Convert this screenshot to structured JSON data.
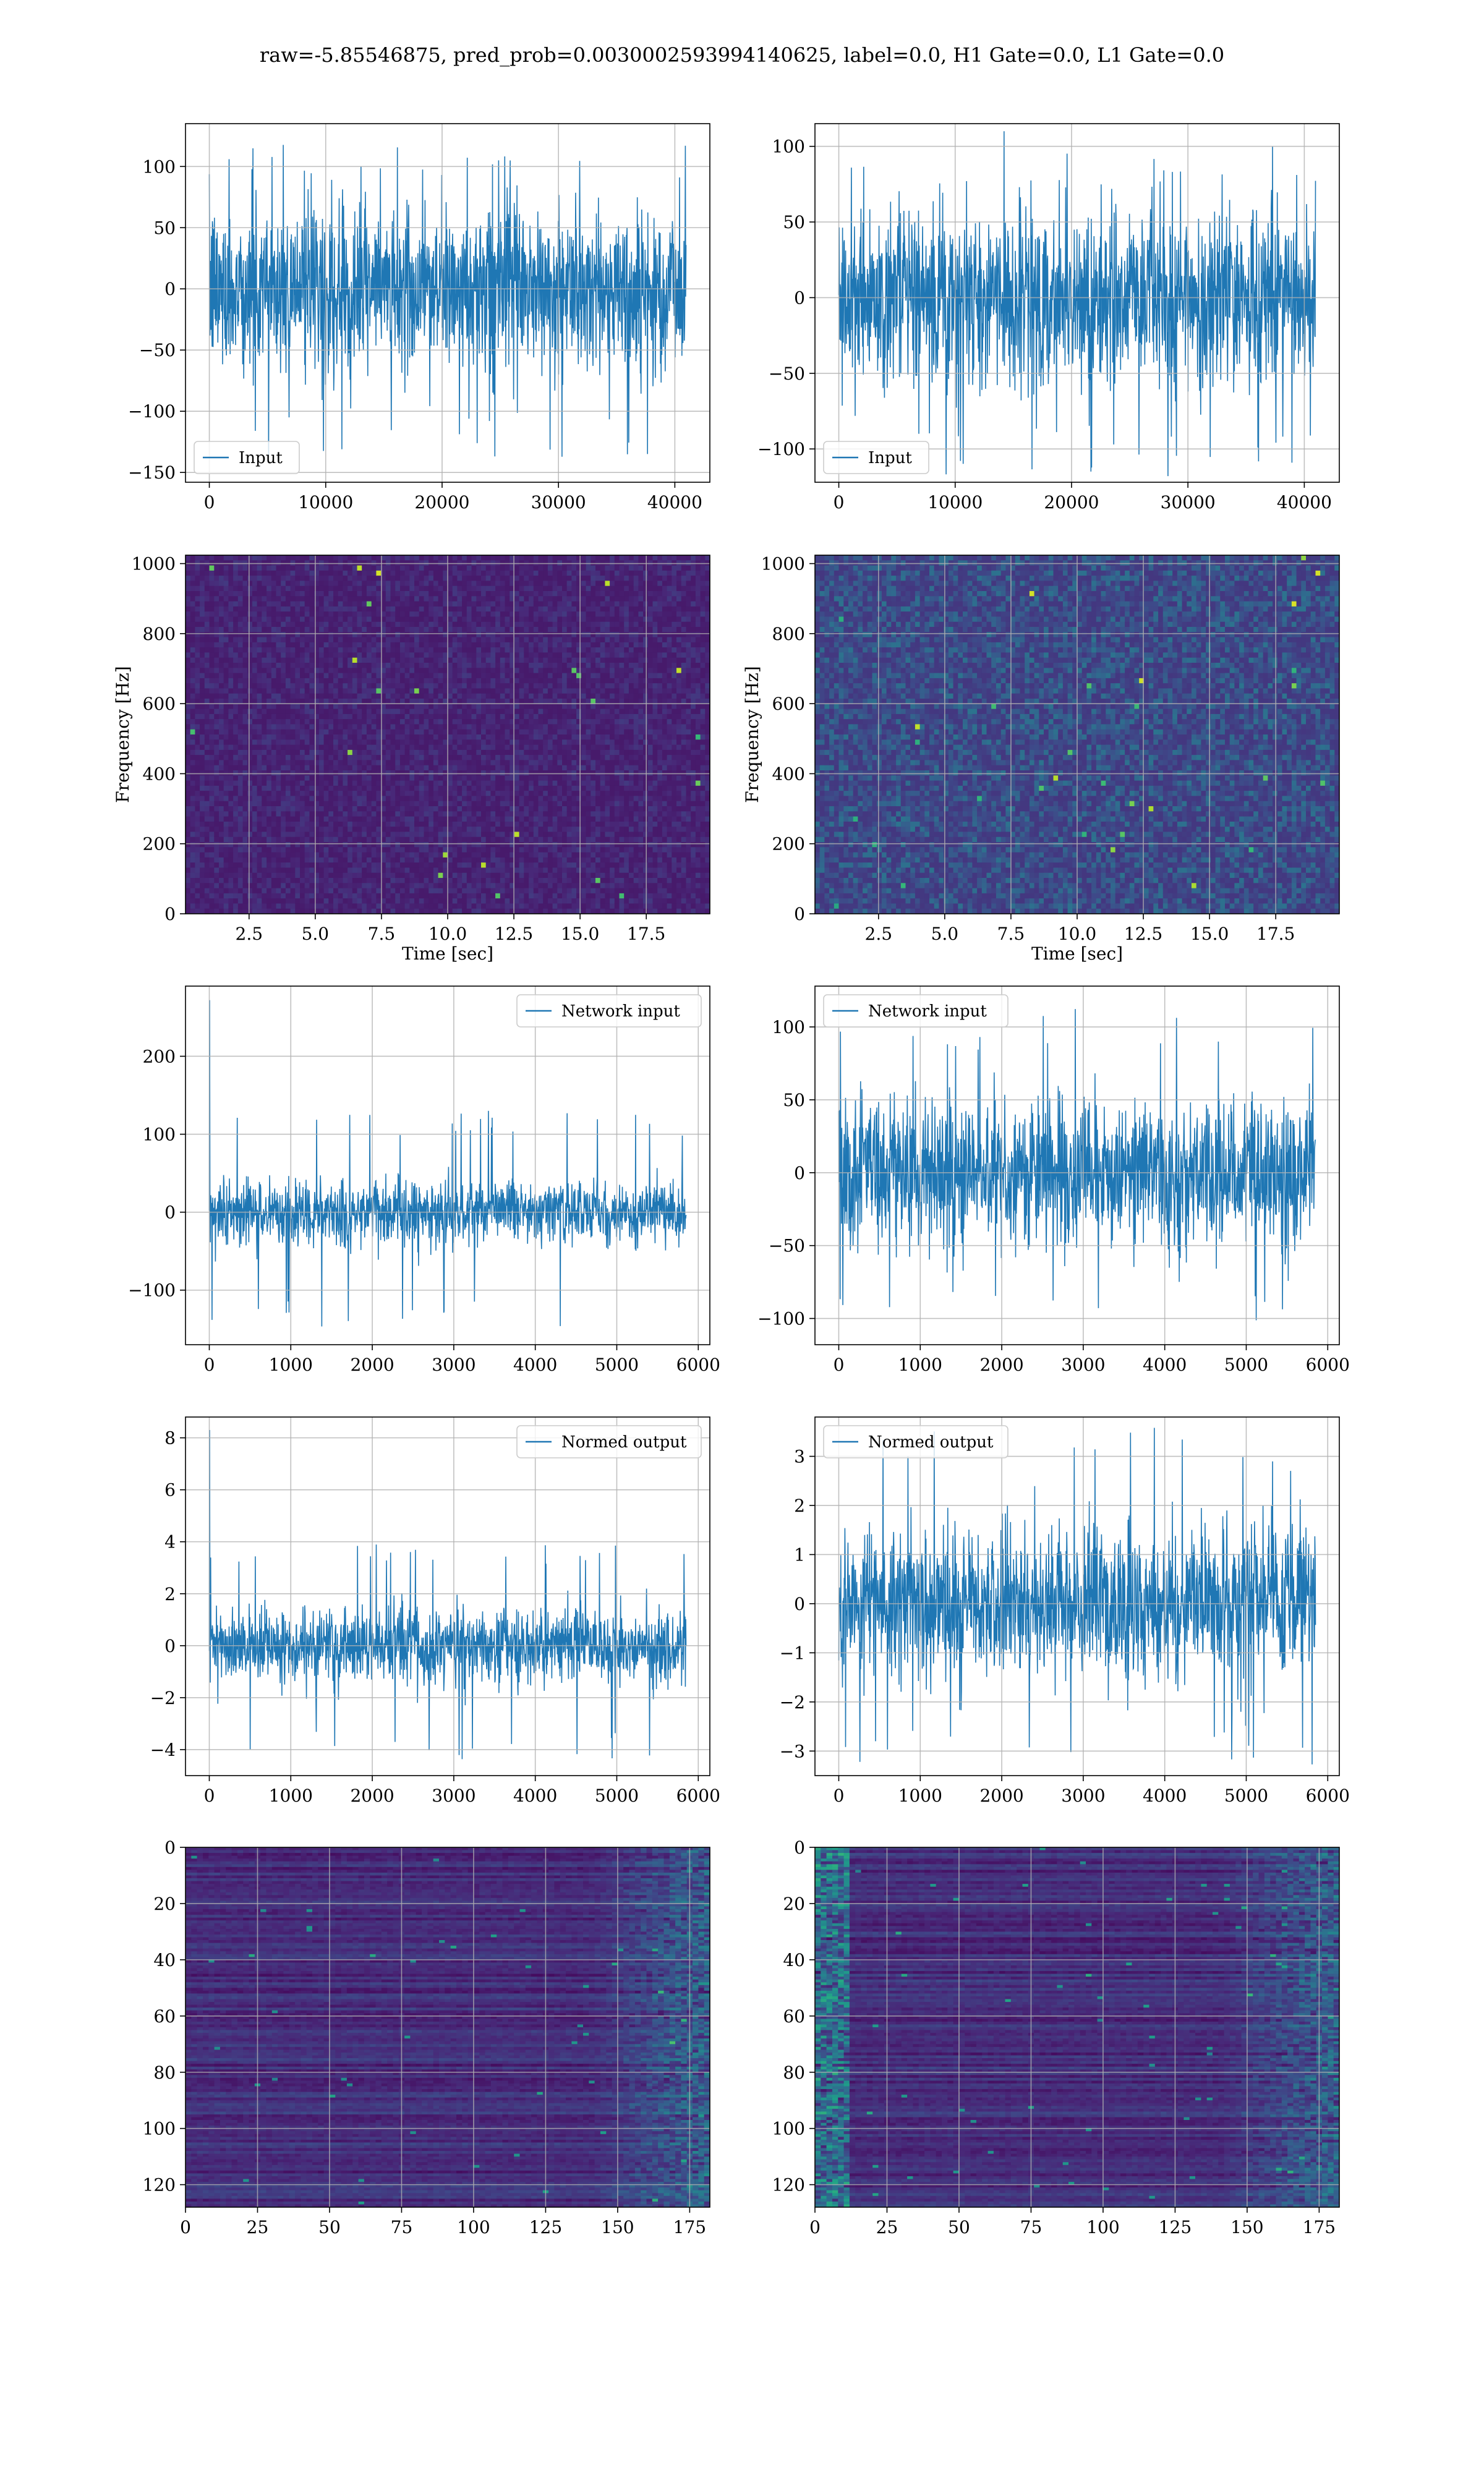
{
  "suptitle": "raw=-5.85546875, pred_prob=0.0030002593994140625, label=0.0, H1 Gate=0.0, L1 Gate=0.0",
  "colors": {
    "line": "#1f77b4",
    "grid": "#b0b0b0",
    "spine": "#000000",
    "viridis_low": "#440154",
    "viridis_high": "#fde725"
  },
  "chart_data": [
    {
      "id": "H1-input",
      "type": "line",
      "row": 1,
      "col": 1,
      "series": [
        {
          "name": "Input",
          "envelope": {
            "x": [
              0,
              40960
            ],
            "typical_abs": 75,
            "peak_max": 118,
            "peak_min": -140
          }
        }
      ],
      "xlim": [
        -2048,
        43008
      ],
      "ylim": [
        -158,
        135
      ],
      "xticks": [
        0,
        10000,
        20000,
        30000,
        40000
      ],
      "yticks": [
        -150,
        -100,
        -50,
        0,
        50,
        100
      ],
      "xlabel": "",
      "ylabel": "",
      "legend": "lower left",
      "grid": true
    },
    {
      "id": "L1-input",
      "type": "line",
      "row": 1,
      "col": 2,
      "series": [
        {
          "name": "Input",
          "envelope": {
            "x": [
              0,
              40960
            ],
            "typical_abs": 65,
            "peak_max": 110,
            "peak_min": -118
          }
        }
      ],
      "xlim": [
        -2048,
        43008
      ],
      "ylim": [
        -122,
        115
      ],
      "xticks": [
        0,
        10000,
        20000,
        30000,
        40000
      ],
      "yticks": [
        -100,
        -50,
        0,
        50,
        100
      ],
      "xlabel": "",
      "ylabel": "",
      "legend": "lower left",
      "grid": true
    },
    {
      "id": "H1-spectrogram",
      "type": "heatmap",
      "row": 2,
      "col": 1,
      "xlim": [
        0.1,
        19.9
      ],
      "ylim": [
        0,
        1024
      ],
      "xticks": [
        2.5,
        5.0,
        7.5,
        10.0,
        12.5,
        15.0,
        17.5
      ],
      "yticks": [
        0,
        200,
        400,
        600,
        800,
        1000
      ],
      "xlabel": "Time [sec]",
      "ylabel": "Frequency [Hz]",
      "colormap": "viridis",
      "intensity": "low",
      "grid": true
    },
    {
      "id": "L1-spectrogram",
      "type": "heatmap",
      "row": 2,
      "col": 2,
      "xlim": [
        0.1,
        19.9
      ],
      "ylim": [
        0,
        1024
      ],
      "xticks": [
        2.5,
        5.0,
        7.5,
        10.0,
        12.5,
        15.0,
        17.5
      ],
      "yticks": [
        0,
        200,
        400,
        600,
        800,
        1000
      ],
      "xlabel": "Time [sec]",
      "ylabel": "Frequency [Hz]",
      "colormap": "viridis",
      "intensity": "medium",
      "grid": true
    },
    {
      "id": "H1-network-input",
      "type": "line",
      "row": 3,
      "col": 1,
      "series": [
        {
          "name": "Network input",
          "envelope": {
            "x": [
              0,
              5850
            ],
            "typical_abs": 45,
            "peak_max": 130,
            "peak_min": -150,
            "initial_spike": 272
          }
        }
      ],
      "xlim": [
        -292,
        6142
      ],
      "ylim": [
        -170,
        290
      ],
      "xticks": [
        0,
        1000,
        2000,
        3000,
        4000,
        5000,
        6000
      ],
      "yticks": [
        -100,
        0,
        100,
        200
      ],
      "xlabel": "",
      "ylabel": "",
      "legend": "upper right",
      "grid": true
    },
    {
      "id": "L1-network-input",
      "type": "line",
      "row": 3,
      "col": 2,
      "series": [
        {
          "name": "Network input",
          "envelope": {
            "x": [
              0,
              5850
            ],
            "typical_abs": 55,
            "peak_max": 115,
            "peak_min": -105
          }
        }
      ],
      "xlim": [
        -292,
        6142
      ],
      "ylim": [
        -118,
        128
      ],
      "xticks": [
        0,
        1000,
        2000,
        3000,
        4000,
        5000,
        6000
      ],
      "yticks": [
        -100,
        -50,
        0,
        50,
        100
      ],
      "xlabel": "",
      "ylabel": "",
      "legend": "upper left",
      "grid": true
    },
    {
      "id": "H1-normed-output",
      "type": "line",
      "row": 4,
      "col": 1,
      "series": [
        {
          "name": "Normed output",
          "envelope": {
            "x": [
              0,
              5850
            ],
            "typical_abs": 1.6,
            "peak_max": 4.0,
            "peak_min": -4.4,
            "initial_spike": 8.3
          }
        }
      ],
      "xlim": [
        -292,
        6142
      ],
      "ylim": [
        -5.0,
        8.8
      ],
      "xticks": [
        0,
        1000,
        2000,
        3000,
        4000,
        5000,
        6000
      ],
      "yticks": [
        -4,
        -2,
        0,
        2,
        4,
        6,
        8
      ],
      "xlabel": "",
      "ylabel": "",
      "legend": "upper right",
      "grid": true
    },
    {
      "id": "L1-normed-output",
      "type": "line",
      "row": 4,
      "col": 2,
      "series": [
        {
          "name": "Normed output",
          "envelope": {
            "x": [
              0,
              5850
            ],
            "typical_abs": 1.7,
            "peak_max": 3.6,
            "peak_min": -3.3
          }
        }
      ],
      "xlim": [
        -292,
        6142
      ],
      "ylim": [
        -3.5,
        3.8
      ],
      "xticks": [
        0,
        1000,
        2000,
        3000,
        4000,
        5000,
        6000
      ],
      "yticks": [
        -3,
        -2,
        -1,
        0,
        1,
        2,
        3
      ],
      "xlabel": "",
      "ylabel": "",
      "legend": "upper left",
      "grid": true
    },
    {
      "id": "H1-feature-map",
      "type": "heatmap",
      "row": 5,
      "col": 1,
      "xlim": [
        0,
        182
      ],
      "ylim": [
        128,
        0
      ],
      "xticks": [
        0,
        25,
        50,
        75,
        100,
        125,
        150,
        175
      ],
      "yticks": [
        0,
        20,
        40,
        60,
        80,
        100,
        120
      ],
      "xlabel": "",
      "ylabel": "",
      "colormap": "viridis",
      "intensity": "row-striped, brighter at right edge",
      "grid": true
    },
    {
      "id": "L1-feature-map",
      "type": "heatmap",
      "row": 5,
      "col": 2,
      "xlim": [
        0,
        182
      ],
      "ylim": [
        128,
        0
      ],
      "xticks": [
        0,
        25,
        50,
        75,
        100,
        125,
        150,
        175
      ],
      "yticks": [
        0,
        20,
        40,
        60,
        80,
        100,
        120
      ],
      "xlabel": "",
      "ylabel": "",
      "colormap": "viridis",
      "intensity": "row-striped, brighter at left and right edges",
      "grid": true
    }
  ]
}
